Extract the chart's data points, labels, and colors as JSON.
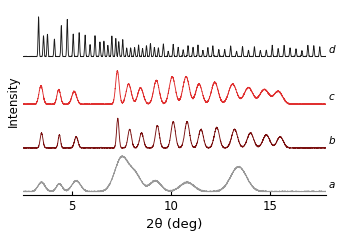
{
  "title": "",
  "xlabel": "2θ (deg)",
  "ylabel": "Intensity",
  "xlim": [
    2.5,
    17.8
  ],
  "xticks": [
    5,
    10,
    15
  ],
  "colors": {
    "a": "#999999",
    "b": "#7a1010",
    "c": "#e03030",
    "d": "#1a1a1a"
  },
  "offsets": {
    "a": 0.0,
    "b": 0.22,
    "c": 0.44,
    "d": 0.68
  },
  "scale_a": 0.18,
  "scale_b": 0.15,
  "scale_c": 0.17,
  "scale_d": 0.2,
  "noise_a": 0.002,
  "noise_b": 0.0012,
  "noise_c": 0.0015,
  "noise_d": 0.001,
  "background": "#ffffff",
  "linewidth": 0.65,
  "seed": 7
}
